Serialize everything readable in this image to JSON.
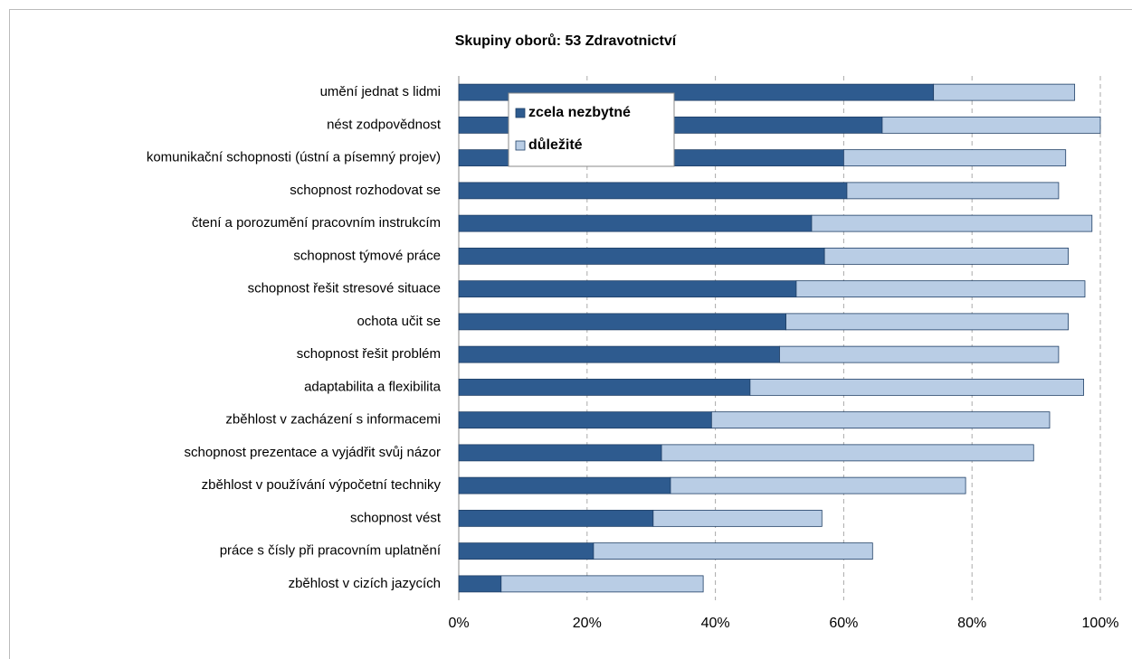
{
  "chart_data": {
    "type": "stacked_bar_horizontal",
    "title": "Skupiny oborů: 53 Zdravotnictví",
    "categories": [
      "umění jednat s lidmi",
      "nést zodpovědnost",
      "komunikační schopnosti (ústní a písemný projev)",
      "schopnost rozhodovat se",
      "čtení a porozumění pracovním instrukcím",
      "schopnost týmové práce",
      "schopnost řešit stresové situace",
      "ochota učit se",
      "schopnost řešit problém",
      "adaptabilita a flexibilita",
      "zběhlost v zacházení s informacemi",
      "schopnost prezentace a vyjádřit svůj názor",
      "zběhlost v používání výpočetní techniky",
      "schopnost vést",
      "práce s čísly při pracovním uplatnění",
      "zběhlost v cizích jazycích"
    ],
    "series": [
      {
        "name": "zcela nezbytné",
        "color": "#2e5b8f",
        "values": [
          74,
          66,
          60,
          60.5,
          55,
          57,
          52.6,
          51,
          50,
          45.4,
          39.4,
          31.6,
          33,
          30.3,
          21,
          6.6
        ]
      },
      {
        "name": "důležité",
        "color": "#b9cde5",
        "values": [
          22,
          34,
          34.6,
          33,
          43.7,
          38,
          45,
          44,
          43.5,
          52,
          52.7,
          58,
          46,
          26.3,
          43.5,
          31.5
        ]
      }
    ],
    "xlim": [
      0,
      100
    ],
    "xticks": [
      {
        "value": 0,
        "label": "0%"
      },
      {
        "value": 20,
        "label": "20%"
      },
      {
        "value": 40,
        "label": "40%"
      },
      {
        "value": 60,
        "label": "60%"
      },
      {
        "value": 80,
        "label": "80%"
      },
      {
        "value": 100,
        "label": "100%"
      }
    ],
    "grid": true,
    "legend": "top-left"
  }
}
